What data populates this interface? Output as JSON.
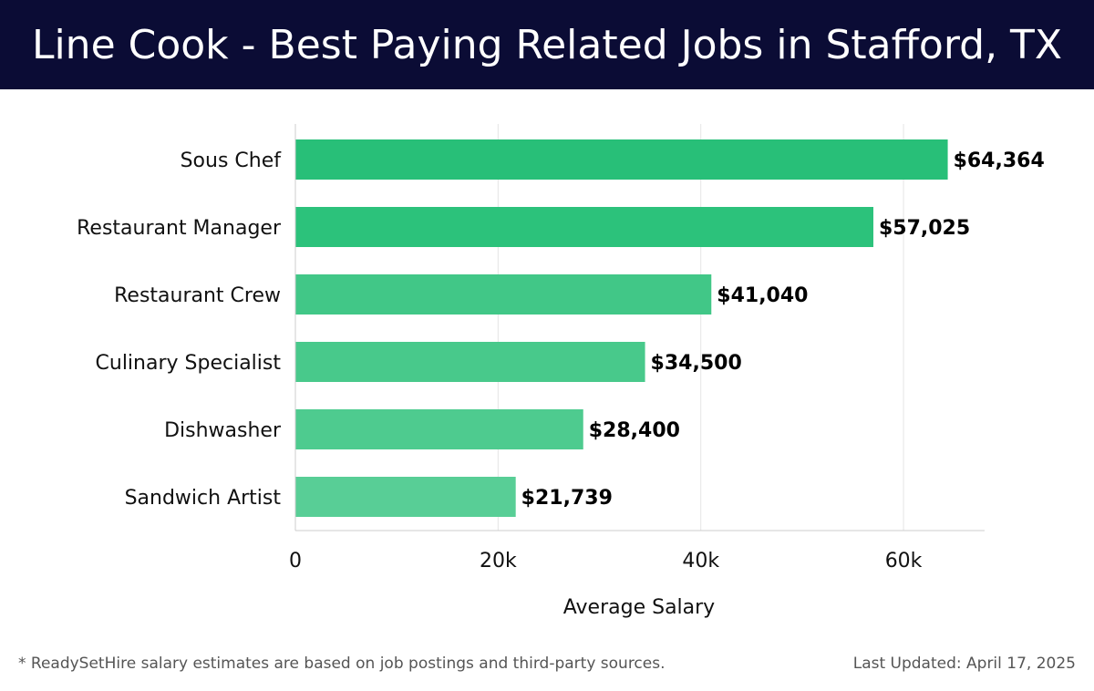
{
  "header": {
    "title": "Line Cook - Best Paying Related Jobs in Stafford, TX"
  },
  "chart_data": {
    "type": "bar",
    "orientation": "horizontal",
    "categories": [
      "Sous Chef",
      "Restaurant Manager",
      "Restaurant Crew",
      "Culinary Specialist",
      "Dishwasher",
      "Sandwich Artist"
    ],
    "values": [
      64364,
      57025,
      41040,
      34500,
      28400,
      21739
    ],
    "value_labels": [
      "$64,364",
      "$57,025",
      "$41,040",
      "$34,500",
      "$28,400",
      "$21,739"
    ],
    "xlabel": "Average Salary",
    "ylabel": "",
    "xlim": [
      0,
      68000
    ],
    "x_ticks": [
      0,
      20000,
      40000,
      60000
    ],
    "x_tick_labels": [
      "0",
      "20k",
      "40k",
      "60k"
    ],
    "grid": true,
    "bar_colors": [
      "#28bf78",
      "#2cc27b",
      "#41c787",
      "#48c98b",
      "#4ecb8f",
      "#58ce96"
    ]
  },
  "footer": {
    "note": "* ReadySetHire salary estimates are based on job postings and third-party sources.",
    "updated": "Last Updated: April 17, 2025"
  }
}
